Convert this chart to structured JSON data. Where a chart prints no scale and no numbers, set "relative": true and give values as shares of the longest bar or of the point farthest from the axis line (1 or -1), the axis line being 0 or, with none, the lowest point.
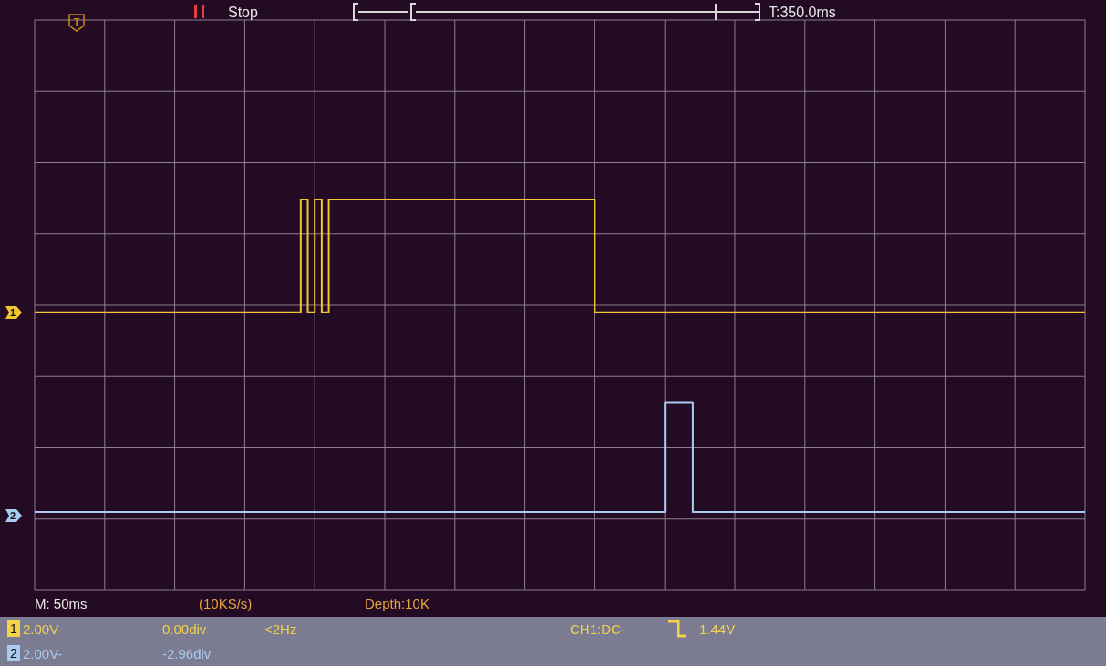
{
  "chart_data": {
    "type": "step",
    "relative": true,
    "grid": true,
    "categories": [
      null,
      null,
      null,
      null,
      null,
      null,
      null,
      null,
      null,
      null,
      null,
      null,
      null,
      null,
      null,
      null,
      null,
      null,
      null,
      null,
      null,
      null,
      null,
      null,
      null,
      null,
      null,
      null,
      null,
      null,
      null,
      null,
      null,
      null,
      null,
      null,
      null,
      null,
      null,
      null,
      null,
      null,
      null,
      null,
      null,
      null,
      null,
      null,
      null,
      null,
      null,
      null,
      null,
      null,
      null,
      null,
      null,
      null,
      null,
      null,
      null,
      null,
      null,
      null,
      null,
      null,
      null,
      null,
      null,
      null,
      null,
      null,
      null,
      null,
      null,
      null,
      null,
      null,
      null,
      null,
      null,
      null,
      null,
      null,
      null,
      null,
      null,
      null,
      null,
      null,
      null,
      null,
      null,
      null,
      null,
      null,
      null,
      null,
      null,
      null,
      null,
      null,
      null,
      null,
      null,
      null,
      null,
      null,
      null,
      null,
      null,
      null,
      null,
      null,
      null,
      null,
      null,
      null,
      null,
      null,
      null,
      null,
      null,
      null,
      null,
      null,
      null,
      null,
      null,
      null,
      null,
      null,
      null,
      null,
      null,
      null,
      null,
      null,
      null,
      null,
      null,
      null,
      null,
      null,
      null,
      null,
      null,
      null,
      null,
      null,
      null
    ],
    "series": [
      {
        "color": "#f2c531",
        "values": [
          0.71,
          0.71,
          0.71,
          0.71,
          0.71,
          0.71,
          0.71,
          0.71,
          0.71,
          0.71,
          0.71,
          0.71,
          0.71,
          0.71,
          0.71,
          0.71,
          0.71,
          0.71,
          0.71,
          0.71,
          0.71,
          0.71,
          0.71,
          0.71,
          0.71,
          0.71,
          0.71,
          0.71,
          0.71,
          0.71,
          0.71,
          0.71,
          0.71,
          0.71,
          0.71,
          0.71,
          0.71,
          0.71,
          1,
          0.71,
          1,
          0.71,
          1,
          1,
          1,
          1,
          1,
          1,
          1,
          1,
          1,
          1,
          1,
          1,
          1,
          1,
          1,
          1,
          1,
          1,
          1,
          1,
          1,
          1,
          1,
          1,
          1,
          1,
          1,
          1,
          1,
          1,
          1,
          1,
          1,
          1,
          1,
          1,
          1,
          1,
          0.71,
          0.71,
          0.71,
          0.71,
          0.71,
          0.71,
          0.71,
          0.71,
          0.71,
          0.71,
          0.71,
          0.71,
          0.71,
          0.71,
          0.71,
          0.71,
          0.71,
          0.71,
          0.71,
          0.71,
          0.71,
          0.71,
          0.71,
          0.71,
          0.71,
          0.71,
          0.71,
          0.71,
          0.71,
          0.71,
          0.71,
          0.71,
          0.71,
          0.71,
          0.71,
          0.71,
          0.71,
          0.71,
          0.71,
          0.71,
          0.71,
          0.71,
          0.71,
          0.71,
          0.71,
          0.71,
          0.71,
          0.71,
          0.71,
          0.71,
          0.71,
          0.71,
          0.71,
          0.71,
          0.71,
          0.71,
          0.71,
          0.71,
          0.71,
          0.71,
          0.71,
          0.71,
          0.71,
          0.71,
          0.71,
          0.71,
          0.71,
          0.71,
          0.71,
          0.71,
          0.71
        ]
      },
      {
        "color": "#a9cbef",
        "values": [
          0.2,
          0.2,
          0.2,
          0.2,
          0.2,
          0.2,
          0.2,
          0.2,
          0.2,
          0.2,
          0.2,
          0.2,
          0.2,
          0.2,
          0.2,
          0.2,
          0.2,
          0.2,
          0.2,
          0.2,
          0.2,
          0.2,
          0.2,
          0.2,
          0.2,
          0.2,
          0.2,
          0.2,
          0.2,
          0.2,
          0.2,
          0.2,
          0.2,
          0.2,
          0.2,
          0.2,
          0.2,
          0.2,
          0.2,
          0.2,
          0.2,
          0.2,
          0.2,
          0.2,
          0.2,
          0.2,
          0.2,
          0.2,
          0.2,
          0.2,
          0.2,
          0.2,
          0.2,
          0.2,
          0.2,
          0.2,
          0.2,
          0.2,
          0.2,
          0.2,
          0.2,
          0.2,
          0.2,
          0.2,
          0.2,
          0.2,
          0.2,
          0.2,
          0.2,
          0.2,
          0.2,
          0.2,
          0.2,
          0.2,
          0.2,
          0.2,
          0.2,
          0.2,
          0.2,
          0.2,
          0.2,
          0.2,
          0.2,
          0.2,
          0.2,
          0.2,
          0.2,
          0.2,
          0.2,
          0.2,
          0.48,
          0.48,
          0.48,
          0.48,
          0.2,
          0.2,
          0.2,
          0.2,
          0.2,
          0.2,
          0.2,
          0.2,
          0.2,
          0.2,
          0.2,
          0.2,
          0.2,
          0.2,
          0.2,
          0.2,
          0.2,
          0.2,
          0.2,
          0.2,
          0.2,
          0.2,
          0.2,
          0.2,
          0.2,
          0.2,
          0.2,
          0.2,
          0.2,
          0.2,
          0.2,
          0.2,
          0.2,
          0.2,
          0.2,
          0.2,
          0.2,
          0.2,
          0.2,
          0.2,
          0.2,
          0.2,
          0.2,
          0.2,
          0.2,
          0.2,
          0.2,
          0.2,
          0.2,
          0.2,
          0.2,
          0.2,
          0.2,
          0.2,
          0.2,
          0.2,
          0.2
        ]
      }
    ],
    "annotations": [
      "Stop",
      "T:350.0ms",
      "M: 50ms",
      "(10KS/s)",
      "Depth:10K",
      "1",
      "2.00V-",
      "0.00div",
      "<2Hz",
      "CH1:DC-",
      "1.44V",
      "2",
      "2.00V-",
      "-2.96div",
      "1",
      "2",
      "T"
    ]
  }
}
